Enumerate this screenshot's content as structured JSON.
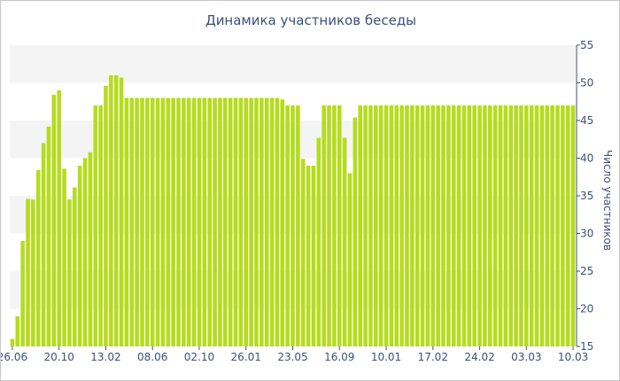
{
  "chart_data": {
    "type": "bar",
    "title": "Динамика участников беседы",
    "xlabel": "",
    "ylabel": "Число участников",
    "ylim": [
      15,
      55
    ],
    "yticks": [
      15,
      20,
      25,
      30,
      35,
      40,
      45,
      50,
      55
    ],
    "y_axis_side": "right",
    "grid": "alternating horizontal bands",
    "legend": "none",
    "bar_color": "#b5dc1d",
    "band_color": "#f4f4f4",
    "text_color": "#3d4f7c",
    "x_tick_labels": [
      "26.06",
      "20.10",
      "13.02",
      "08.06",
      "02.10",
      "26.01",
      "23.05",
      "16.09",
      "10.01",
      "17.02",
      "24.02",
      "03.03",
      "10.03"
    ],
    "x_tick_bar_index": [
      0,
      9,
      18,
      27,
      36,
      45,
      54,
      63,
      72,
      81,
      90,
      99,
      108
    ],
    "values": [
      16,
      19,
      29,
      34.6,
      34.5,
      38.4,
      42,
      44.2,
      48.4,
      49,
      38.6,
      34.5,
      36.1,
      39,
      40,
      40.8,
      47,
      47,
      49.6,
      51,
      51,
      50.7,
      48,
      48,
      48,
      48,
      48,
      48,
      48,
      48,
      48,
      48,
      48,
      48,
      48,
      48,
      48,
      48,
      48,
      48,
      48,
      48,
      48,
      48,
      48,
      48,
      48,
      48,
      48,
      48,
      48,
      48,
      47.8,
      47,
      47,
      47,
      39.9,
      39,
      39,
      42.7,
      47,
      47,
      47,
      47,
      42.7,
      38,
      45.4,
      47,
      47,
      47,
      47,
      47,
      47,
      47,
      47,
      47,
      47,
      47,
      47,
      47,
      47,
      47,
      47,
      47,
      47,
      47,
      47,
      47,
      47,
      47,
      47,
      47,
      47,
      47,
      47,
      47,
      47,
      47,
      47,
      47,
      47,
      47,
      47,
      47,
      47,
      47,
      47,
      47,
      47
    ]
  }
}
